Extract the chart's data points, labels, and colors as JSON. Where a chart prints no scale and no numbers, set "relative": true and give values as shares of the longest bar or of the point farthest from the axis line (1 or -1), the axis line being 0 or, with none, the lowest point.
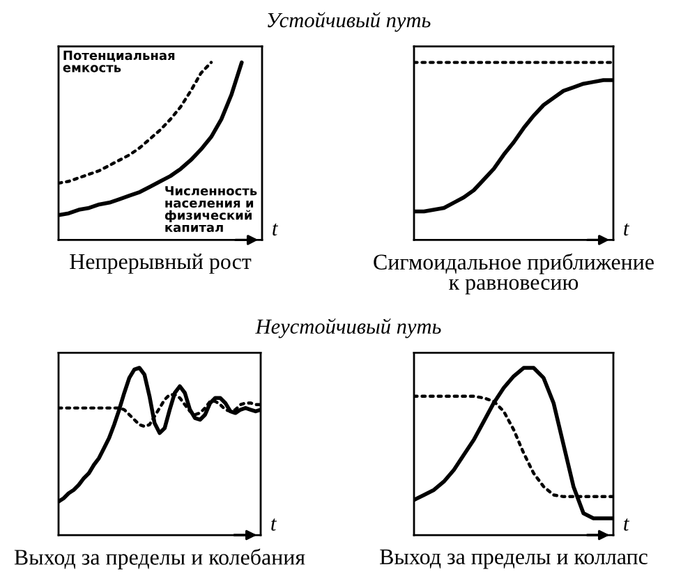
{
  "chart_data": [
    {
      "type": "line",
      "subtitle": "Устойчивый путь",
      "title": "Непрерывный рост",
      "xlabel": "t",
      "relative": true,
      "categories": [
        null,
        null,
        null,
        null,
        null,
        null,
        null,
        null,
        null,
        null,
        null,
        null,
        null,
        null,
        null,
        null,
        null,
        null,
        null,
        null,
        null
      ],
      "series": [
        {
          "name": "Потенциальная\nемкость",
          "color": "#000000",
          "line_style": "dotted",
          "values": [
            0.32,
            0.33,
            0.35,
            0.37,
            0.39,
            0.42,
            0.45,
            0.48,
            0.52,
            0.57,
            0.62,
            0.68,
            0.75,
            0.84,
            0.94,
            1.0,
            null,
            null,
            null,
            null,
            null
          ]
        },
        {
          "name": "Численность\nнаселения и\nфизический\nкапитал",
          "color": "#000000",
          "line_style": "solid",
          "values": [
            0.14,
            0.15,
            0.17,
            0.18,
            0.2,
            0.21,
            0.23,
            0.25,
            0.27,
            0.3,
            0.33,
            0.36,
            0.4,
            0.45,
            0.51,
            0.58,
            0.68,
            0.82,
            1.0,
            null,
            null
          ]
        }
      ]
    },
    {
      "type": "line",
      "title": "Сигмоидальное приближение\nк равновесию",
      "xlabel": "t",
      "relative": true,
      "categories": [
        null,
        null,
        null,
        null,
        null,
        null,
        null,
        null,
        null,
        null,
        null,
        null,
        null,
        null,
        null,
        null,
        null,
        null,
        null,
        null,
        null
      ],
      "series": [
        {
          "color": "#000000",
          "line_style": "dotted",
          "values": [
            1.0,
            1.0,
            1.0,
            1.0,
            1.0,
            1.0,
            1.0,
            1.0,
            1.0,
            1.0,
            1.0,
            1.0,
            1.0,
            1.0,
            1.0,
            1.0,
            1.0,
            1.0,
            1.0,
            1.0,
            1.0
          ]
        },
        {
          "color": "#000000",
          "line_style": "solid",
          "values": [
            0.16,
            0.16,
            0.17,
            0.18,
            0.21,
            0.24,
            0.28,
            0.34,
            0.4,
            0.48,
            0.55,
            0.63,
            0.7,
            0.76,
            0.8,
            0.84,
            0.86,
            0.88,
            0.89,
            0.9,
            0.9
          ]
        }
      ]
    },
    {
      "type": "line",
      "subtitle": "Неустойчивый путь",
      "title": "Выход за пределы и колебания",
      "xlabel": "t",
      "relative": true,
      "categories": [
        null,
        null,
        null,
        null,
        null,
        null,
        null,
        null,
        null,
        null,
        null,
        null,
        null,
        null,
        null,
        null,
        null,
        null,
        null,
        null,
        null,
        null,
        null,
        null,
        null,
        null,
        null,
        null,
        null,
        null,
        null,
        null,
        null,
        null,
        null,
        null,
        null,
        null,
        null,
        null,
        null
      ],
      "series": [
        {
          "color": "#000000",
          "line_style": "dotted",
          "values": [
            0.76,
            0.76,
            0.76,
            0.76,
            0.76,
            0.76,
            0.76,
            0.76,
            0.76,
            0.76,
            0.76,
            0.76,
            0.76,
            0.75,
            0.72,
            0.69,
            0.66,
            0.65,
            0.66,
            0.71,
            0.76,
            0.81,
            0.84,
            0.84,
            0.82,
            0.78,
            0.74,
            0.72,
            0.73,
            0.76,
            0.8,
            0.8,
            0.78,
            0.75,
            0.74,
            0.75,
            0.78,
            0.79,
            0.79,
            0.78,
            0.78
          ]
        },
        {
          "color": "#000000",
          "line_style": "solid",
          "values": [
            0.2,
            0.22,
            0.25,
            0.27,
            0.3,
            0.34,
            0.37,
            0.42,
            0.46,
            0.52,
            0.58,
            0.66,
            0.75,
            0.85,
            0.94,
            0.99,
            1.0,
            0.96,
            0.83,
            0.67,
            0.61,
            0.64,
            0.75,
            0.85,
            0.89,
            0.85,
            0.75,
            0.7,
            0.69,
            0.72,
            0.79,
            0.82,
            0.82,
            0.79,
            0.74,
            0.73,
            0.75,
            0.76,
            0.75,
            0.74,
            0.75
          ]
        }
      ]
    },
    {
      "type": "line",
      "title": "Выход за пределы и коллапс",
      "xlabel": "t",
      "relative": true,
      "categories": [
        null,
        null,
        null,
        null,
        null,
        null,
        null,
        null,
        null,
        null,
        null,
        null,
        null,
        null,
        null,
        null,
        null,
        null,
        null,
        null,
        null
      ],
      "series": [
        {
          "color": "#000000",
          "line_style": "dotted",
          "values": [
            0.83,
            0.83,
            0.83,
            0.83,
            0.83,
            0.83,
            0.83,
            0.82,
            0.8,
            0.74,
            0.63,
            0.49,
            0.37,
            0.29,
            0.24,
            0.23,
            0.23,
            0.23,
            0.23,
            0.23,
            0.23
          ]
        },
        {
          "color": "#000000",
          "line_style": "solid",
          "values": [
            0.21,
            0.24,
            0.27,
            0.32,
            0.39,
            0.48,
            0.57,
            0.68,
            0.79,
            0.88,
            0.95,
            1.0,
            1.0,
            0.94,
            0.79,
            0.54,
            0.29,
            0.13,
            0.1,
            0.1,
            0.1
          ]
        }
      ]
    }
  ]
}
